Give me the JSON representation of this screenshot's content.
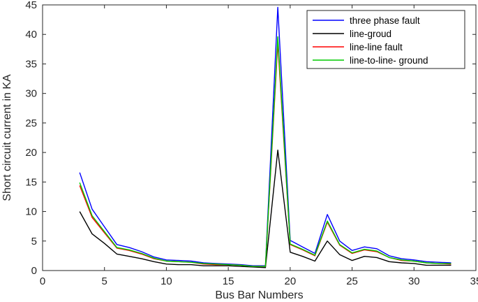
{
  "chart_data": {
    "type": "line",
    "title": "",
    "xlabel": "Bus Bar Numbers",
    "ylabel": "Short circuit current in KA",
    "xlim": [
      0,
      35
    ],
    "ylim": [
      0,
      45
    ],
    "xticks": [
      0,
      5,
      10,
      15,
      20,
      25,
      30,
      35
    ],
    "yticks": [
      0,
      5,
      10,
      15,
      20,
      25,
      30,
      35,
      40,
      45
    ],
    "grid": false,
    "legend_position": "top-right",
    "x": [
      3,
      4,
      5,
      6,
      7,
      8,
      9,
      10,
      11,
      12,
      13,
      14,
      15,
      16,
      17,
      18,
      19,
      20,
      21,
      22,
      23,
      24,
      25,
      26,
      27,
      28,
      29,
      30,
      31,
      32,
      33
    ],
    "series": [
      {
        "name": "three phase fault",
        "color": "#0000ff",
        "values": [
          16.6,
          10.4,
          7.4,
          4.4,
          3.9,
          3.2,
          2.3,
          1.8,
          1.7,
          1.6,
          1.3,
          1.2,
          1.1,
          1.0,
          0.8,
          0.8,
          44.6,
          5.1,
          4.0,
          2.9,
          9.5,
          5.0,
          3.4,
          4.0,
          3.7,
          2.5,
          2.0,
          1.8,
          1.5,
          1.4,
          1.3
        ]
      },
      {
        "name": "line-groud",
        "color": "#000000",
        "values": [
          10.0,
          6.2,
          4.6,
          2.8,
          2.4,
          2.0,
          1.5,
          1.1,
          1.0,
          1.0,
          0.8,
          0.8,
          0.8,
          0.7,
          0.6,
          0.5,
          20.4,
          3.1,
          2.4,
          1.6,
          5.0,
          2.7,
          1.7,
          2.4,
          2.2,
          1.5,
          1.3,
          1.2,
          0.9,
          0.9,
          0.9
        ]
      },
      {
        "name": "line-line fault",
        "color": "#ff0000",
        "values": [
          14.4,
          9.0,
          6.4,
          3.8,
          3.4,
          2.8,
          2.0,
          1.6,
          1.5,
          1.4,
          1.1,
          1.0,
          1.0,
          0.9,
          0.7,
          0.7,
          38.6,
          4.4,
          3.5,
          2.5,
          8.2,
          4.3,
          2.9,
          3.5,
          3.2,
          2.2,
          1.7,
          1.6,
          1.3,
          1.2,
          1.1
        ]
      },
      {
        "name": "line-to-line- ground",
        "color": "#00cc00",
        "values": [
          14.9,
          9.3,
          6.6,
          3.9,
          3.5,
          2.9,
          2.1,
          1.6,
          1.5,
          1.4,
          1.2,
          1.1,
          1.0,
          0.9,
          0.7,
          0.7,
          39.6,
          4.5,
          3.6,
          2.6,
          8.4,
          4.4,
          3.0,
          3.6,
          3.3,
          2.2,
          1.8,
          1.6,
          1.3,
          1.2,
          1.2
        ]
      }
    ]
  }
}
